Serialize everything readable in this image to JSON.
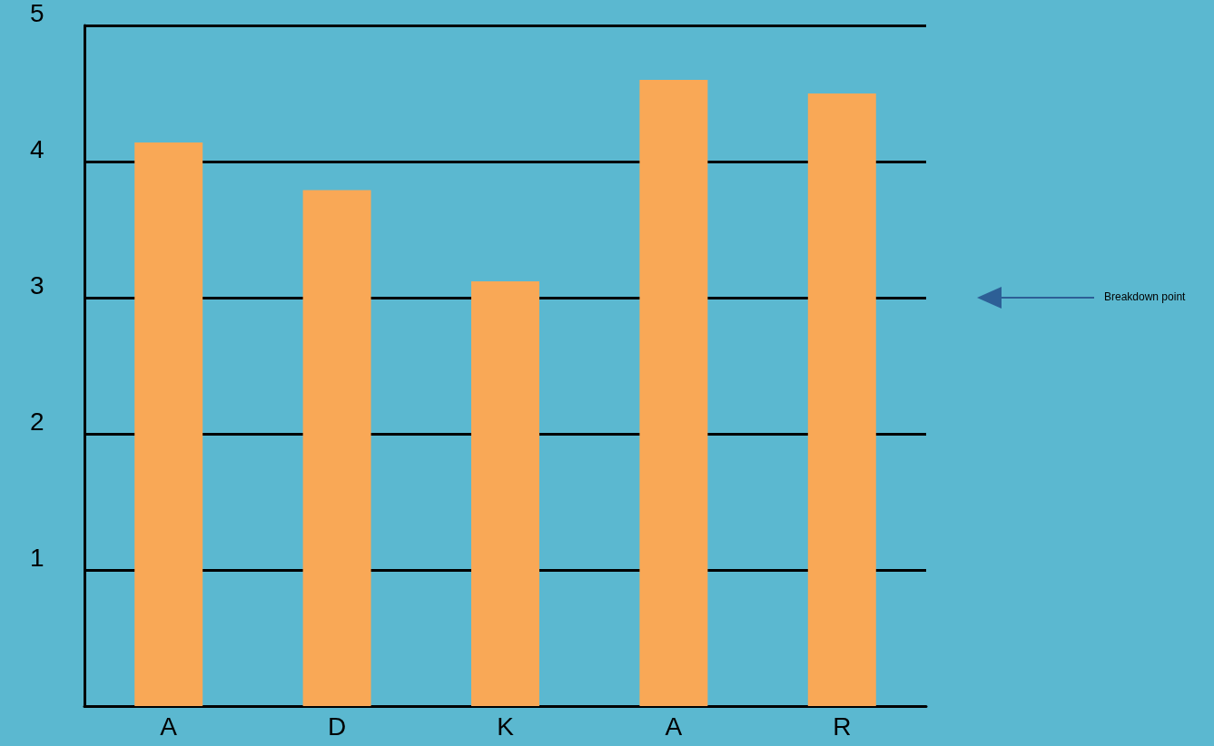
{
  "chart_data": {
    "type": "bar",
    "categories": [
      "A",
      "D",
      "K",
      "A",
      "R"
    ],
    "values": [
      4.14,
      3.79,
      3.12,
      4.6,
      4.5
    ],
    "color": "#f9a856",
    "ylim": [
      0,
      5
    ],
    "yticks": [
      {
        "value": 0,
        "label": null
      },
      1,
      2,
      3,
      4,
      5
    ],
    "grid": "y",
    "annotations": [
      "Breakdown point"
    ]
  }
}
